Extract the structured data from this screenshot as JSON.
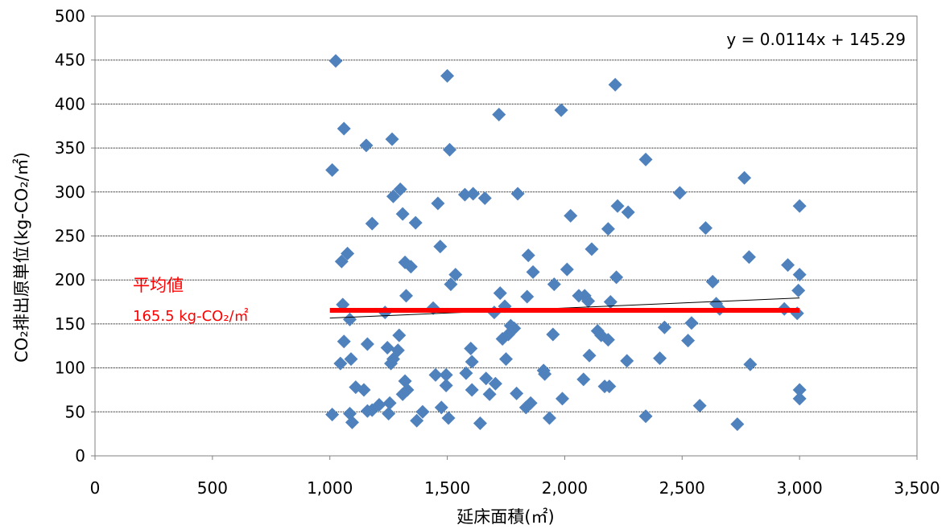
{
  "chart_data": {
    "type": "scatter",
    "title": "",
    "xlabel": "延床面積(㎡)",
    "ylabel": "CO₂排出原単位(kg-CO₂/㎡)",
    "xlim": [
      0,
      3500
    ],
    "ylim": [
      0,
      500
    ],
    "x_ticks": [
      0,
      500,
      1000,
      1500,
      2000,
      2500,
      3000,
      3500
    ],
    "x_tick_labels": [
      "0",
      "500",
      "1,000",
      "1,500",
      "2,000",
      "2,500",
      "3,000",
      "3,500"
    ],
    "y_ticks": [
      0,
      50,
      100,
      150,
      200,
      250,
      300,
      350,
      400,
      450,
      500
    ],
    "y_tick_labels": [
      "0",
      "50",
      "100",
      "150",
      "200",
      "250",
      "300",
      "350",
      "400",
      "450",
      "500"
    ],
    "grid": "horizontal",
    "colors": {
      "points": "#4f81bd",
      "average": "#ff0000",
      "trend": "#000000"
    },
    "points": [
      [
        1025,
        449
      ],
      [
        1010,
        325
      ],
      [
        1060,
        372
      ],
      [
        1050,
        221
      ],
      [
        1075,
        230
      ],
      [
        1085,
        155
      ],
      [
        1055,
        172
      ],
      [
        1060,
        130
      ],
      [
        1045,
        105
      ],
      [
        1010,
        47
      ],
      [
        1095,
        38
      ],
      [
        1085,
        48
      ],
      [
        1110,
        78
      ],
      [
        1090,
        110
      ],
      [
        1155,
        353
      ],
      [
        1180,
        264
      ],
      [
        1160,
        127
      ],
      [
        1145,
        75
      ],
      [
        1160,
        51
      ],
      [
        1180,
        52
      ],
      [
        1210,
        58
      ],
      [
        1235,
        163
      ],
      [
        1255,
        60
      ],
      [
        1250,
        48
      ],
      [
        1245,
        123
      ],
      [
        1270,
        110
      ],
      [
        1260,
        105
      ],
      [
        1265,
        360
      ],
      [
        1270,
        295
      ],
      [
        1295,
        137
      ],
      [
        1290,
        120
      ],
      [
        1300,
        303
      ],
      [
        1310,
        275
      ],
      [
        1320,
        220
      ],
      [
        1325,
        182
      ],
      [
        1320,
        85
      ],
      [
        1310,
        70
      ],
      [
        1330,
        75
      ],
      [
        1345,
        215
      ],
      [
        1365,
        265
      ],
      [
        1370,
        40
      ],
      [
        1395,
        50
      ],
      [
        1440,
        168
      ],
      [
        1450,
        92
      ],
      [
        1460,
        287
      ],
      [
        1470,
        238
      ],
      [
        1475,
        55
      ],
      [
        1500,
        432
      ],
      [
        1495,
        92
      ],
      [
        1495,
        80
      ],
      [
        1505,
        43
      ],
      [
        1510,
        348
      ],
      [
        1515,
        195
      ],
      [
        1535,
        206
      ],
      [
        1575,
        297
      ],
      [
        1580,
        94
      ],
      [
        1600,
        122
      ],
      [
        1605,
        107
      ],
      [
        1610,
        298
      ],
      [
        1605,
        75
      ],
      [
        1640,
        37
      ],
      [
        1660,
        293
      ],
      [
        1665,
        88
      ],
      [
        1680,
        70
      ],
      [
        1700,
        163
      ],
      [
        1705,
        82
      ],
      [
        1720,
        388
      ],
      [
        1725,
        185
      ],
      [
        1735,
        133
      ],
      [
        1745,
        170
      ],
      [
        1750,
        110
      ],
      [
        1760,
        138
      ],
      [
        1770,
        148
      ],
      [
        1785,
        145
      ],
      [
        1795,
        71
      ],
      [
        1800,
        298
      ],
      [
        1835,
        55
      ],
      [
        1840,
        181
      ],
      [
        1845,
        228
      ],
      [
        1855,
        60
      ],
      [
        1865,
        209
      ],
      [
        1910,
        97
      ],
      [
        1915,
        93
      ],
      [
        1935,
        43
      ],
      [
        1950,
        138
      ],
      [
        1955,
        195
      ],
      [
        1985,
        393
      ],
      [
        1990,
        65
      ],
      [
        2010,
        212
      ],
      [
        2025,
        273
      ],
      [
        2060,
        182
      ],
      [
        2080,
        87
      ],
      [
        2085,
        182
      ],
      [
        2100,
        176
      ],
      [
        2105,
        114
      ],
      [
        2115,
        235
      ],
      [
        2140,
        142
      ],
      [
        2155,
        137
      ],
      [
        2170,
        79
      ],
      [
        2185,
        132
      ],
      [
        2185,
        258
      ],
      [
        2190,
        79
      ],
      [
        2195,
        175
      ],
      [
        2215,
        422
      ],
      [
        2220,
        203
      ],
      [
        2225,
        284
      ],
      [
        2265,
        108
      ],
      [
        2270,
        277
      ],
      [
        2345,
        337
      ],
      [
        2345,
        45
      ],
      [
        2405,
        111
      ],
      [
        2425,
        146
      ],
      [
        2490,
        299
      ],
      [
        2525,
        131
      ],
      [
        2540,
        151
      ],
      [
        2575,
        57
      ],
      [
        2600,
        259
      ],
      [
        2630,
        198
      ],
      [
        2645,
        173
      ],
      [
        2660,
        167
      ],
      [
        2735,
        36
      ],
      [
        2765,
        316
      ],
      [
        2785,
        226
      ],
      [
        2790,
        104
      ],
      [
        2935,
        167
      ],
      [
        2950,
        217
      ],
      [
        2990,
        162
      ],
      [
        2995,
        188
      ],
      [
        3000,
        206
      ],
      [
        3000,
        284
      ],
      [
        3000,
        75
      ],
      [
        3000,
        65
      ]
    ],
    "trendline": {
      "slope": 0.0114,
      "intercept": 145.29,
      "x_range": [
        1000,
        3000
      ],
      "label": "y = 0.0114x + 145.29"
    },
    "average": {
      "value": 165.5,
      "x_range": [
        1000,
        3000
      ],
      "title": "平均値",
      "label": "165.5 kg-CO₂/㎡"
    }
  }
}
